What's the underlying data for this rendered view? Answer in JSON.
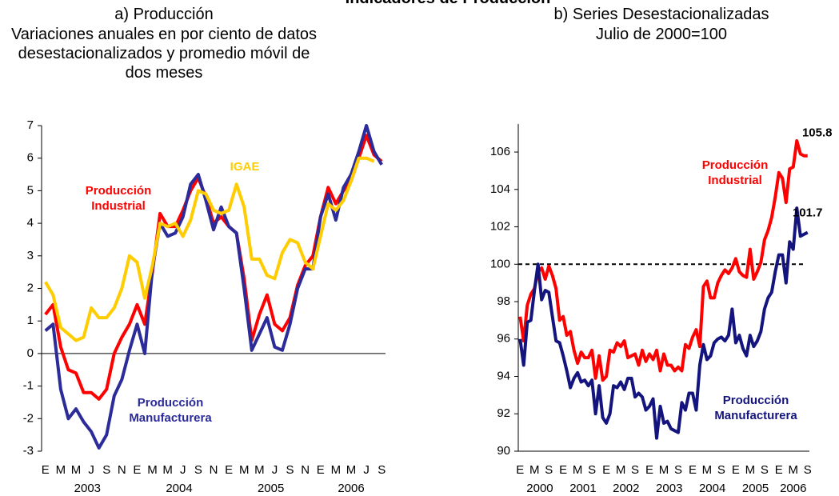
{
  "page_title": "Indicadores de Producción",
  "chart_data": [
    {
      "type": "line",
      "title": "a) Producción",
      "subtitle": "Variaciones anuales en por ciento de datos desestacionalizados y promedio móvil de dos meses",
      "categories": [
        "E",
        null,
        "M",
        null,
        "M",
        null,
        "J",
        null,
        "S",
        null,
        "N",
        null,
        "E",
        null,
        "M",
        null,
        "M",
        null,
        "J",
        null,
        "S",
        null,
        "N",
        null,
        "E",
        null,
        "M",
        null,
        "M",
        null,
        "J",
        null,
        "S",
        null,
        "N",
        null,
        "E",
        null,
        "M",
        null,
        "M",
        null,
        "J",
        null,
        "S"
      ],
      "years": [
        "2003",
        "2004",
        "2005",
        "2006"
      ],
      "ylim": [
        -3,
        7
      ],
      "yticks": [
        -3,
        -2,
        -1,
        0,
        1,
        2,
        3,
        4,
        5,
        6,
        7
      ],
      "series": [
        {
          "name": "Producción Industrial",
          "color": "#ff0000",
          "values": [
            1.2,
            1.5,
            0.2,
            -0.5,
            -0.6,
            -1.2,
            -1.2,
            -1.4,
            -1.1,
            0.0,
            0.5,
            0.9,
            1.5,
            0.9,
            2.5,
            4.3,
            3.9,
            3.9,
            4.4,
            5.0,
            5.4,
            4.8,
            4.0,
            4.2,
            3.9,
            3.7,
            2.3,
            0.4,
            1.2,
            1.8,
            0.9,
            0.7,
            1.1,
            2.1,
            2.7,
            3.0,
            4.2,
            5.1,
            4.6,
            5.0,
            5.3,
            6.0,
            6.7,
            6.1,
            5.9
          ]
        },
        {
          "name": "Producción Manufacturera",
          "color": "#2b2b99",
          "values": [
            0.7,
            0.9,
            -1.1,
            -2.0,
            -1.7,
            -2.1,
            -2.4,
            -2.9,
            -2.5,
            -1.3,
            -0.8,
            0.1,
            0.9,
            0.0,
            2.6,
            4.0,
            3.6,
            3.7,
            4.2,
            5.2,
            5.5,
            4.7,
            3.8,
            4.5,
            3.9,
            3.7,
            2.0,
            0.1,
            0.6,
            1.1,
            0.2,
            0.1,
            0.9,
            2.0,
            2.6,
            2.6,
            4.2,
            4.9,
            4.1,
            5.1,
            5.5,
            6.2,
            7.0,
            6.2,
            5.8
          ]
        },
        {
          "name": "IGAE",
          "color": "#ffcc00",
          "values": [
            2.2,
            1.8,
            0.8,
            0.6,
            0.4,
            0.5,
            1.4,
            1.1,
            1.1,
            1.4,
            2.0,
            3.0,
            2.8,
            1.7,
            2.7,
            4.0,
            3.9,
            4.0,
            3.6,
            4.1,
            5.0,
            4.9,
            4.4,
            4.3,
            4.4,
            5.2,
            4.5,
            2.9,
            2.9,
            2.4,
            2.3,
            3.1,
            3.5,
            3.4,
            2.8,
            2.6,
            3.6,
            4.6,
            4.4,
            4.7,
            5.3,
            6.0,
            6.0,
            5.9,
            null
          ]
        }
      ]
    },
    {
      "type": "line",
      "title": "b) Series Desestacionalizadas",
      "subtitle": "Julio de 2000=100",
      "categories": [
        "E",
        null,
        null,
        null,
        "M",
        null,
        null,
        null,
        "S",
        null,
        null,
        null,
        "E",
        null,
        null,
        null,
        "M",
        null,
        null,
        null,
        "S",
        null,
        null,
        null,
        "E",
        null,
        null,
        null,
        "M",
        null,
        null,
        null,
        "S",
        null,
        null,
        null,
        "E",
        null,
        null,
        null,
        "M",
        null,
        null,
        null,
        "S",
        null,
        null,
        null,
        "E",
        null,
        null,
        null,
        "M",
        null,
        null,
        null,
        "S",
        null,
        null,
        null,
        "E",
        null,
        null,
        null,
        "M",
        null,
        null,
        null,
        "S",
        null,
        null,
        null,
        "E",
        null,
        null,
        null,
        "M",
        null,
        null,
        null,
        "S"
      ],
      "years": [
        "2000",
        "2001",
        "2002",
        "2003",
        "2004",
        "2005",
        "2006"
      ],
      "ylim": [
        90,
        107.5
      ],
      "yticks": [
        90,
        92,
        94,
        96,
        98,
        100,
        102,
        104,
        106
      ],
      "reference_line": 100,
      "end_labels": true,
      "series": [
        {
          "name": "Producción Industrial",
          "color": "#ff0000",
          "values": [
            97.2,
            95.9,
            97.8,
            98.4,
            98.7,
            99.6,
            99.8,
            99.2,
            99.9,
            99.4,
            98.7,
            97.0,
            97.2,
            96.2,
            96.4,
            95.4,
            94.7,
            95.3,
            95.0,
            95.0,
            95.4,
            93.9,
            95.1,
            93.8,
            94.0,
            95.4,
            95.3,
            95.8,
            95.6,
            95.9,
            95.0,
            95.1,
            95.2,
            94.6,
            95.4,
            94.8,
            95.2,
            94.9,
            95.4,
            94.3,
            95.2,
            94.6,
            94.6,
            94.3,
            94.5,
            94.3,
            95.7,
            95.5,
            96.1,
            96.5,
            95.6,
            98.8,
            99.1,
            98.2,
            98.2,
            99.0,
            99.4,
            99.7,
            99.5,
            99.8,
            100.3,
            99.6,
            99.4,
            99.3,
            100.8,
            99.2,
            99.6,
            100.1,
            101.3,
            101.8,
            102.5,
            103.6,
            104.9,
            104.6,
            103.3,
            105.1,
            105.2,
            106.6,
            105.9,
            105.8,
            105.8
          ]
        },
        {
          "name": "Producción Manufacturera",
          "color": "#14147f",
          "values": [
            96.0,
            94.6,
            96.9,
            97.0,
            98.6,
            100.0,
            98.1,
            98.6,
            98.5,
            97.2,
            95.9,
            95.8,
            95.1,
            94.3,
            93.4,
            93.9,
            94.2,
            93.7,
            93.8,
            93.5,
            93.8,
            92.0,
            93.5,
            91.8,
            91.5,
            92.0,
            93.5,
            93.4,
            93.7,
            93.3,
            93.9,
            93.9,
            92.9,
            93.1,
            92.9,
            92.2,
            92.4,
            92.8,
            90.7,
            92.4,
            91.5,
            91.6,
            91.2,
            91.1,
            91.0,
            92.6,
            92.2,
            93.1,
            93.1,
            92.2,
            94.6,
            95.7,
            94.9,
            95.1,
            95.8,
            96.0,
            96.1,
            95.9,
            96.2,
            97.6,
            95.8,
            96.2,
            95.5,
            95.1,
            96.2,
            95.6,
            95.9,
            96.4,
            97.6,
            98.2,
            98.5,
            99.6,
            100.5,
            100.5,
            99.0,
            101.2,
            100.8,
            103.0,
            101.5,
            101.6,
            101.7
          ]
        }
      ]
    }
  ]
}
